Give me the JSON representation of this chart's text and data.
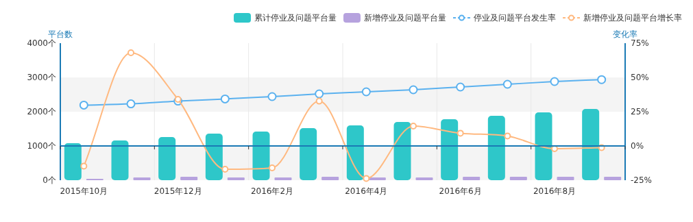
{
  "chart_data": {
    "type": "bar",
    "categories": [
      "2015年10月",
      null,
      "2015年12月",
      null,
      "2016年2月",
      null,
      "2016年4月",
      null,
      "2016年6月",
      null,
      "2016年8月",
      null
    ],
    "ylabel": "平台数",
    "y2label": "变化率",
    "ylim": [
      0,
      4000
    ],
    "yticks": [
      {
        "value": 0,
        "label": "0个"
      },
      {
        "value": 1000,
        "label": "1000个"
      },
      {
        "value": 2000,
        "label": "2000个"
      },
      {
        "value": 3000,
        "label": "3000个"
      },
      {
        "value": 4000,
        "label": "4000个"
      }
    ],
    "y2lim": [
      -25,
      75
    ],
    "y2ticks": [
      {
        "value": -25,
        "label": "-25%"
      },
      {
        "value": 0,
        "label": "0%"
      },
      {
        "value": 25,
        "label": "25%"
      },
      {
        "value": 50,
        "label": "50%"
      },
      {
        "value": 75,
        "label": "75%"
      }
    ],
    "grid": true,
    "legend": "top right",
    "marker": "circle",
    "ref_lines": [
      {
        "axis": "y2",
        "value": 0,
        "color": "#1a7ab5"
      }
    ],
    "series": [
      {
        "name": "累计停业及问题平台量",
        "color": "#2ec7c9",
        "values": [
          1080,
          1160,
          1260,
          1360,
          1420,
          1520,
          1600,
          1700,
          1780,
          1880,
          1980,
          2080
        ]
      },
      {
        "name": "新增停业及问题平台量",
        "color": "#b6a2de",
        "values": [
          40,
          80,
          100,
          80,
          80,
          100,
          80,
          80,
          100,
          100,
          100,
          100
        ]
      },
      {
        "name": "停业及问题平台发生率",
        "type": "line",
        "axis": "y2",
        "color": "#5ab1ef",
        "values": [
          29.8,
          30.7,
          32.7,
          34.3,
          36,
          38,
          39.5,
          41,
          43,
          45,
          47,
          48.4
        ]
      },
      {
        "name": "新增停业及问题平台增长率",
        "type": "line",
        "axis": "y2",
        "color": "#ffb980",
        "values": [
          -14.7,
          68,
          34,
          -17,
          -16,
          32.7,
          -23.7,
          14.5,
          9.3,
          7.3,
          -2,
          -1.2
        ]
      }
    ]
  }
}
